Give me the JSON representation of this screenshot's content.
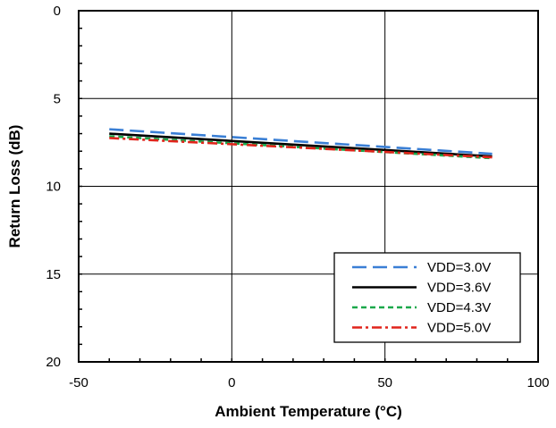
{
  "chart_data": {
    "type": "line",
    "title": "",
    "xlabel": "Ambient Temperature (°C)",
    "ylabel": "Return Loss (dB)",
    "xlim": [
      -50,
      100
    ],
    "ylim": [
      0,
      20
    ],
    "y_inverted": true,
    "x_ticks": [
      "-50",
      "0",
      "50",
      "100"
    ],
    "y_ticks": [
      "0",
      "5",
      "10",
      "15",
      "20"
    ],
    "grid": true,
    "legend_position": "bottom-right",
    "series": [
      {
        "name": "VDD=3.0V",
        "color": "#3a7fd5",
        "dash": "long-dash",
        "x": [
          -40,
          85
        ],
        "y": [
          6.75,
          8.15
        ]
      },
      {
        "name": "VDD=3.6V",
        "color": "#000000",
        "dash": "solid",
        "x": [
          -40,
          85
        ],
        "y": [
          7.0,
          8.3
        ]
      },
      {
        "name": "VDD=4.3V",
        "color": "#1aa84a",
        "dash": "short-dash",
        "x": [
          -40,
          85
        ],
        "y": [
          7.15,
          8.4
        ]
      },
      {
        "name": "VDD=5.0V",
        "color": "#e0241b",
        "dash": "dash-dot",
        "x": [
          -40,
          85
        ],
        "y": [
          7.25,
          8.35
        ]
      }
    ]
  }
}
